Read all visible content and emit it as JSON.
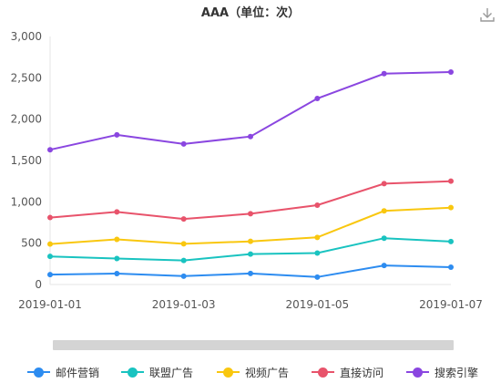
{
  "toolbar": {
    "download_icon": "download-icon"
  },
  "chart_data": {
    "type": "line",
    "title": "AAA（单位：次）",
    "x": [
      "2019-01-01",
      "2019-01-02",
      "2019-01-03",
      "2019-01-04",
      "2019-01-05",
      "2019-01-06",
      "2019-01-07"
    ],
    "x_tick_labels": [
      "2019-01-01",
      "2019-01-03",
      "2019-01-05",
      "2019-01-07"
    ],
    "y_ticks": [
      "0",
      "500",
      "1,000",
      "1,500",
      "2,000",
      "2,500",
      "3,000"
    ],
    "ylim": [
      0,
      3000
    ],
    "grid": false,
    "legend_position": "bottom",
    "has_zoom_slider": true,
    "series": [
      {
        "name": "邮件营销",
        "color": "#2d8cf0",
        "values": [
          120,
          132,
          101,
          134,
          90,
          230,
          210
        ]
      },
      {
        "name": "联盟广告",
        "color": "#19c3c0",
        "values": [
          340,
          314,
          291,
          368,
          380,
          560,
          520
        ]
      },
      {
        "name": "视频广告",
        "color": "#f9c70f",
        "values": [
          490,
          546,
          492,
          522,
          570,
          890,
          930
        ]
      },
      {
        "name": "直接访问",
        "color": "#e8536b",
        "values": [
          810,
          878,
          793,
          856,
          960,
          1220,
          1250
        ]
      },
      {
        "name": "搜索引擎",
        "color": "#8a46e0",
        "values": [
          1630,
          1810,
          1700,
          1790,
          2250,
          2550,
          2570
        ]
      }
    ]
  }
}
